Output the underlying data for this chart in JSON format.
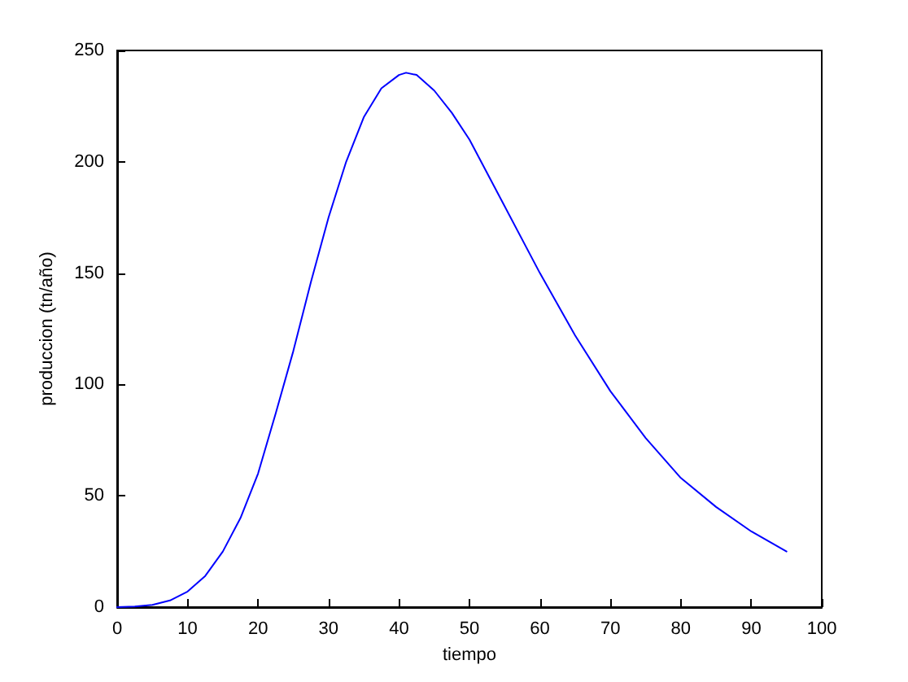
{
  "chart_data": {
    "type": "line",
    "xlabel": "tiempo",
    "ylabel": "produccion (tn/año)",
    "x": [
      0,
      2.5,
      5,
      7.5,
      10,
      12.5,
      15,
      17.5,
      20,
      22.5,
      25,
      27.5,
      30,
      32.5,
      35,
      37.5,
      40,
      41,
      42.5,
      45,
      47.5,
      50,
      55,
      60,
      65,
      70,
      75,
      80,
      85,
      90,
      95
    ],
    "series": [
      {
        "color": "#0000ff",
        "values": [
          0,
          0.3,
          1,
          3,
          7,
          14,
          25,
          40,
          60,
          87,
          115,
          146,
          175,
          200,
          220,
          233,
          239,
          240,
          239,
          232,
          222,
          210,
          180,
          150,
          122,
          97,
          76,
          58,
          45,
          34,
          25
        ]
      }
    ],
    "xlim": [
      0,
      100
    ],
    "xticks": [
      0,
      10,
      20,
      30,
      40,
      50,
      60,
      70,
      80,
      90,
      100
    ],
    "ylim": [
      0,
      250
    ],
    "yticks": [
      0,
      50,
      100,
      150,
      200,
      250
    ],
    "grid": false,
    "marker": "none",
    "line_style": "solid"
  }
}
